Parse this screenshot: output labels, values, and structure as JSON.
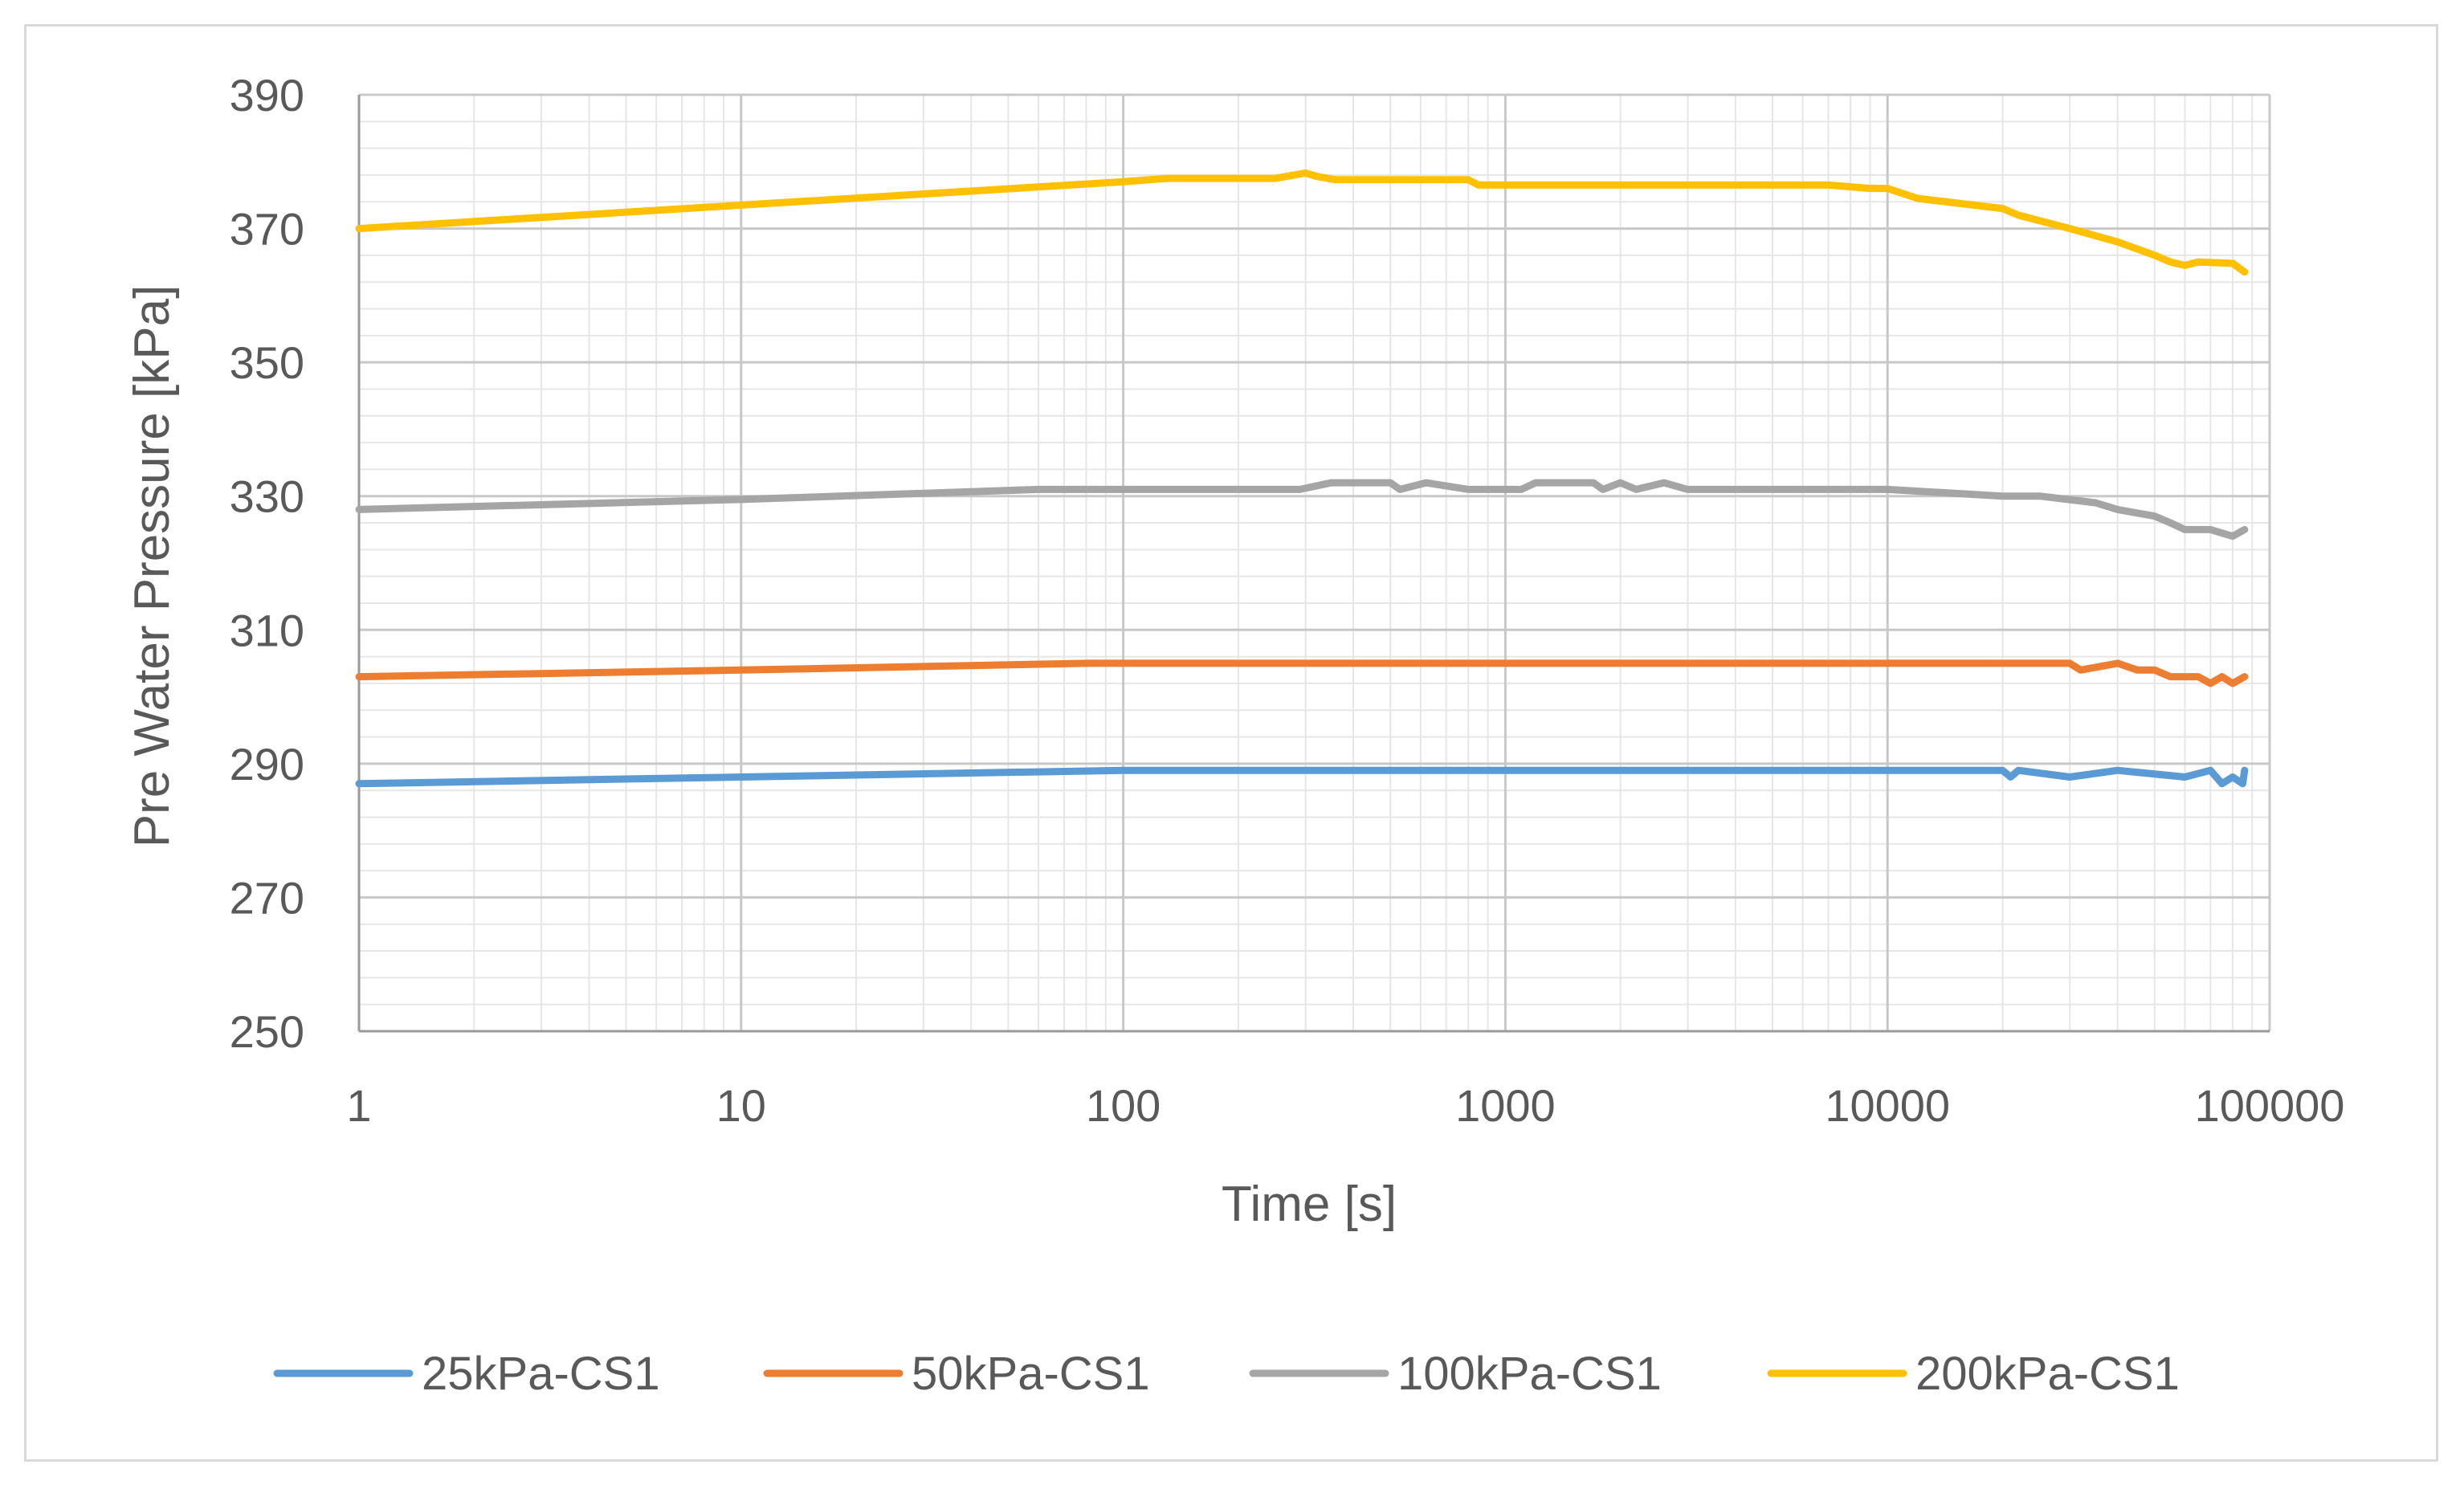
{
  "chart_data": {
    "type": "line",
    "title": "",
    "xlabel": "Time [s]",
    "ylabel": "Pre Water Pressure [kPa]",
    "x_scale": "log",
    "xlim": [
      1,
      100000
    ],
    "ylim": [
      250,
      390
    ],
    "x_ticks": [
      1,
      10,
      100,
      1000,
      10000,
      100000
    ],
    "x_tick_labels": [
      "1",
      "10",
      "100",
      "1000",
      "10000",
      "100000"
    ],
    "y_ticks": [
      250,
      270,
      290,
      310,
      330,
      350,
      370,
      390
    ],
    "y_tick_labels": [
      "250",
      "270",
      "290",
      "310",
      "330",
      "350",
      "370",
      "390"
    ],
    "grid": true,
    "legend_position": "bottom",
    "series": [
      {
        "name": "25kPa-CS1",
        "color": "#5b9bd5",
        "x": [
          1,
          10,
          100,
          1000,
          10000,
          20000,
          21000,
          22000,
          30000,
          40000,
          60000,
          70000,
          75000,
          80000,
          85000,
          86000
        ],
        "y": [
          287,
          288,
          289,
          289,
          289,
          289,
          288,
          289,
          288,
          289,
          288,
          289,
          287,
          288,
          287,
          289
        ]
      },
      {
        "name": "50kPa-CS1",
        "color": "#ed7d31",
        "x": [
          1,
          10,
          80,
          1000,
          10000,
          30000,
          32000,
          40000,
          45000,
          50000,
          55000,
          65000,
          70000,
          75000,
          80000,
          86000
        ],
        "y": [
          303,
          304,
          305,
          305,
          305,
          305,
          304,
          305,
          304,
          304,
          303,
          303,
          302,
          303,
          302,
          303
        ]
      },
      {
        "name": "100kPa-CS1",
        "color": "#a5a5a5",
        "x": [
          1,
          10,
          60,
          100,
          290,
          350,
          500,
          530,
          620,
          800,
          1100,
          1200,
          1700,
          1800,
          2000,
          2200,
          2600,
          3000,
          10000,
          20000,
          25000,
          35000,
          40000,
          50000,
          55000,
          60000,
          70000,
          80000,
          86000
        ],
        "y": [
          328,
          329.5,
          331,
          331,
          331,
          332,
          332,
          331,
          332,
          331,
          331,
          332,
          332,
          331,
          332,
          331,
          332,
          331,
          331,
          330,
          330,
          329,
          328,
          327,
          326,
          325,
          325,
          324,
          325
        ]
      },
      {
        "name": "200kPa-CS1",
        "color": "#ffc000",
        "x": [
          1,
          10,
          100,
          130,
          250,
          300,
          320,
          360,
          800,
          850,
          900,
          1000,
          7000,
          9000,
          10000,
          12000,
          20000,
          22000,
          30000,
          40000,
          50000,
          55000,
          60000,
          65000,
          80000,
          86000
        ],
        "y": [
          370,
          373.5,
          377,
          377.5,
          377.5,
          378.3,
          377.8,
          377.3,
          377.3,
          376.5,
          376.5,
          376.5,
          376.5,
          376,
          376,
          374.5,
          373,
          372,
          370,
          368,
          366,
          365,
          364.5,
          365,
          364.8,
          363.5
        ]
      }
    ]
  }
}
